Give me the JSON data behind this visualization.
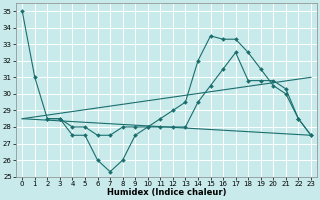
{
  "bg_color": "#c8eaea",
  "grid_color": "#ffffff",
  "line_color": "#1a6e6e",
  "xlabel": "Humidex (Indice chaleur)",
  "xlim": [
    -0.5,
    23.5
  ],
  "ylim": [
    25,
    35.5
  ],
  "yticks": [
    25,
    26,
    27,
    28,
    29,
    30,
    31,
    32,
    33,
    34,
    35
  ],
  "xticks": [
    0,
    1,
    2,
    3,
    4,
    5,
    6,
    7,
    8,
    9,
    10,
    11,
    12,
    13,
    14,
    15,
    16,
    17,
    18,
    19,
    20,
    21,
    22,
    23
  ],
  "lines": [
    {
      "x": [
        0,
        1,
        2,
        3,
        4,
        5,
        6,
        7,
        8,
        9,
        10,
        11,
        12,
        13,
        14,
        15,
        16,
        17,
        18,
        19,
        20,
        21,
        22,
        23
      ],
      "y": [
        35.0,
        31.0,
        28.5,
        28.5,
        27.5,
        27.5,
        26.0,
        25.3,
        26.0,
        27.5,
        28.0,
        28.5,
        29.0,
        29.5,
        32.0,
        33.5,
        33.3,
        33.3,
        32.5,
        31.5,
        30.5,
        30.0,
        28.5,
        27.5
      ],
      "marker": true
    },
    {
      "x": [
        2,
        3,
        4,
        5,
        6,
        7,
        8,
        9,
        10,
        11,
        12,
        13,
        14,
        15,
        16,
        17,
        18,
        19,
        20,
        21,
        22,
        23
      ],
      "y": [
        28.5,
        28.5,
        28.0,
        28.0,
        27.5,
        27.5,
        28.0,
        28.0,
        28.0,
        28.0,
        28.0,
        28.0,
        29.5,
        30.5,
        31.5,
        32.5,
        30.8,
        30.8,
        30.8,
        30.3,
        28.5,
        27.5
      ],
      "marker": true
    },
    {
      "x": [
        0,
        23
      ],
      "y": [
        28.5,
        31.0
      ],
      "marker": false
    },
    {
      "x": [
        0,
        23
      ],
      "y": [
        28.5,
        27.5
      ],
      "marker": false
    }
  ]
}
